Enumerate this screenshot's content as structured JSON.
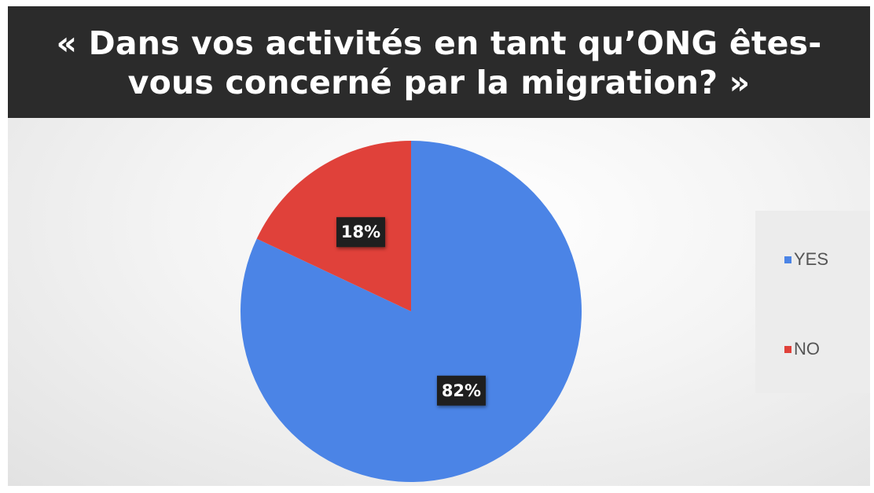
{
  "chart_data": {
    "type": "pie",
    "title": "« Dans vos activités en tant qu’ONG êtes-vous concerné par la migration? »",
    "slices": [
      {
        "label": "YES",
        "value": 82,
        "display": "82%",
        "color": "#4b84e6"
      },
      {
        "label": "NO",
        "value": 18,
        "display": "18%",
        "color": "#e0413a"
      }
    ],
    "legend": {
      "position": "right",
      "entries": [
        "YES",
        "NO"
      ]
    },
    "start_angle": "12 o'clock",
    "direction": "clockwise"
  }
}
